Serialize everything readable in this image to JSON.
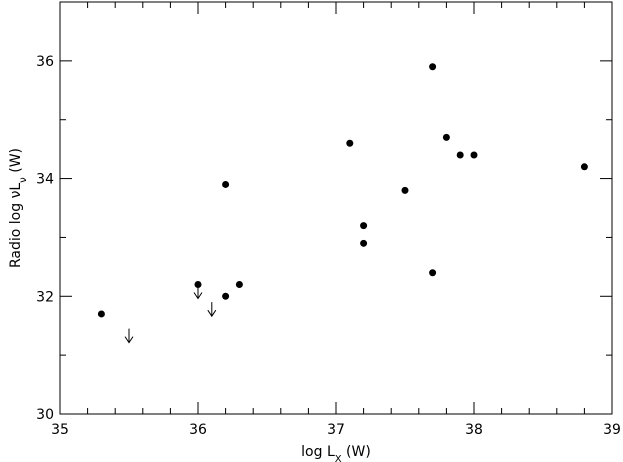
{
  "chart_data": {
    "type": "scatter",
    "xlabel": {
      "text": "log L",
      "sub": "X",
      "tail": " (W)"
    },
    "ylabel": {
      "text": "Radio log νL",
      "sub": "ν",
      "tail": " (W)"
    },
    "xlim": [
      35,
      39
    ],
    "ylim": [
      30,
      37
    ],
    "xticks": [
      35,
      36,
      37,
      38,
      39
    ],
    "yticks": [
      30,
      32,
      34,
      36
    ],
    "xminor": [
      35.2,
      35.4,
      35.6,
      35.8,
      36.2,
      36.4,
      36.6,
      36.8,
      37.2,
      37.4,
      37.6,
      37.8,
      38.2,
      38.4,
      38.6,
      38.8
    ],
    "yminor": [
      31,
      33,
      35,
      37
    ],
    "series": [
      {
        "marker": "dot",
        "color": "#000000",
        "x": [
          35.3,
          36.0,
          36.2,
          36.3,
          36.2,
          37.1,
          37.2,
          37.2,
          37.5,
          37.7,
          37.7,
          37.8,
          37.9,
          38.0,
          38.8
        ],
        "y": [
          31.7,
          32.2,
          32.0,
          32.2,
          33.9,
          34.6,
          33.2,
          32.9,
          33.8,
          35.9,
          32.4,
          34.7,
          34.4,
          34.4,
          34.2
        ]
      },
      {
        "marker": "upper-limit",
        "color": "#000000",
        "x": [
          35.5,
          36.0,
          36.1
        ],
        "y": [
          31.45,
          32.2,
          31.9
        ]
      }
    ]
  }
}
